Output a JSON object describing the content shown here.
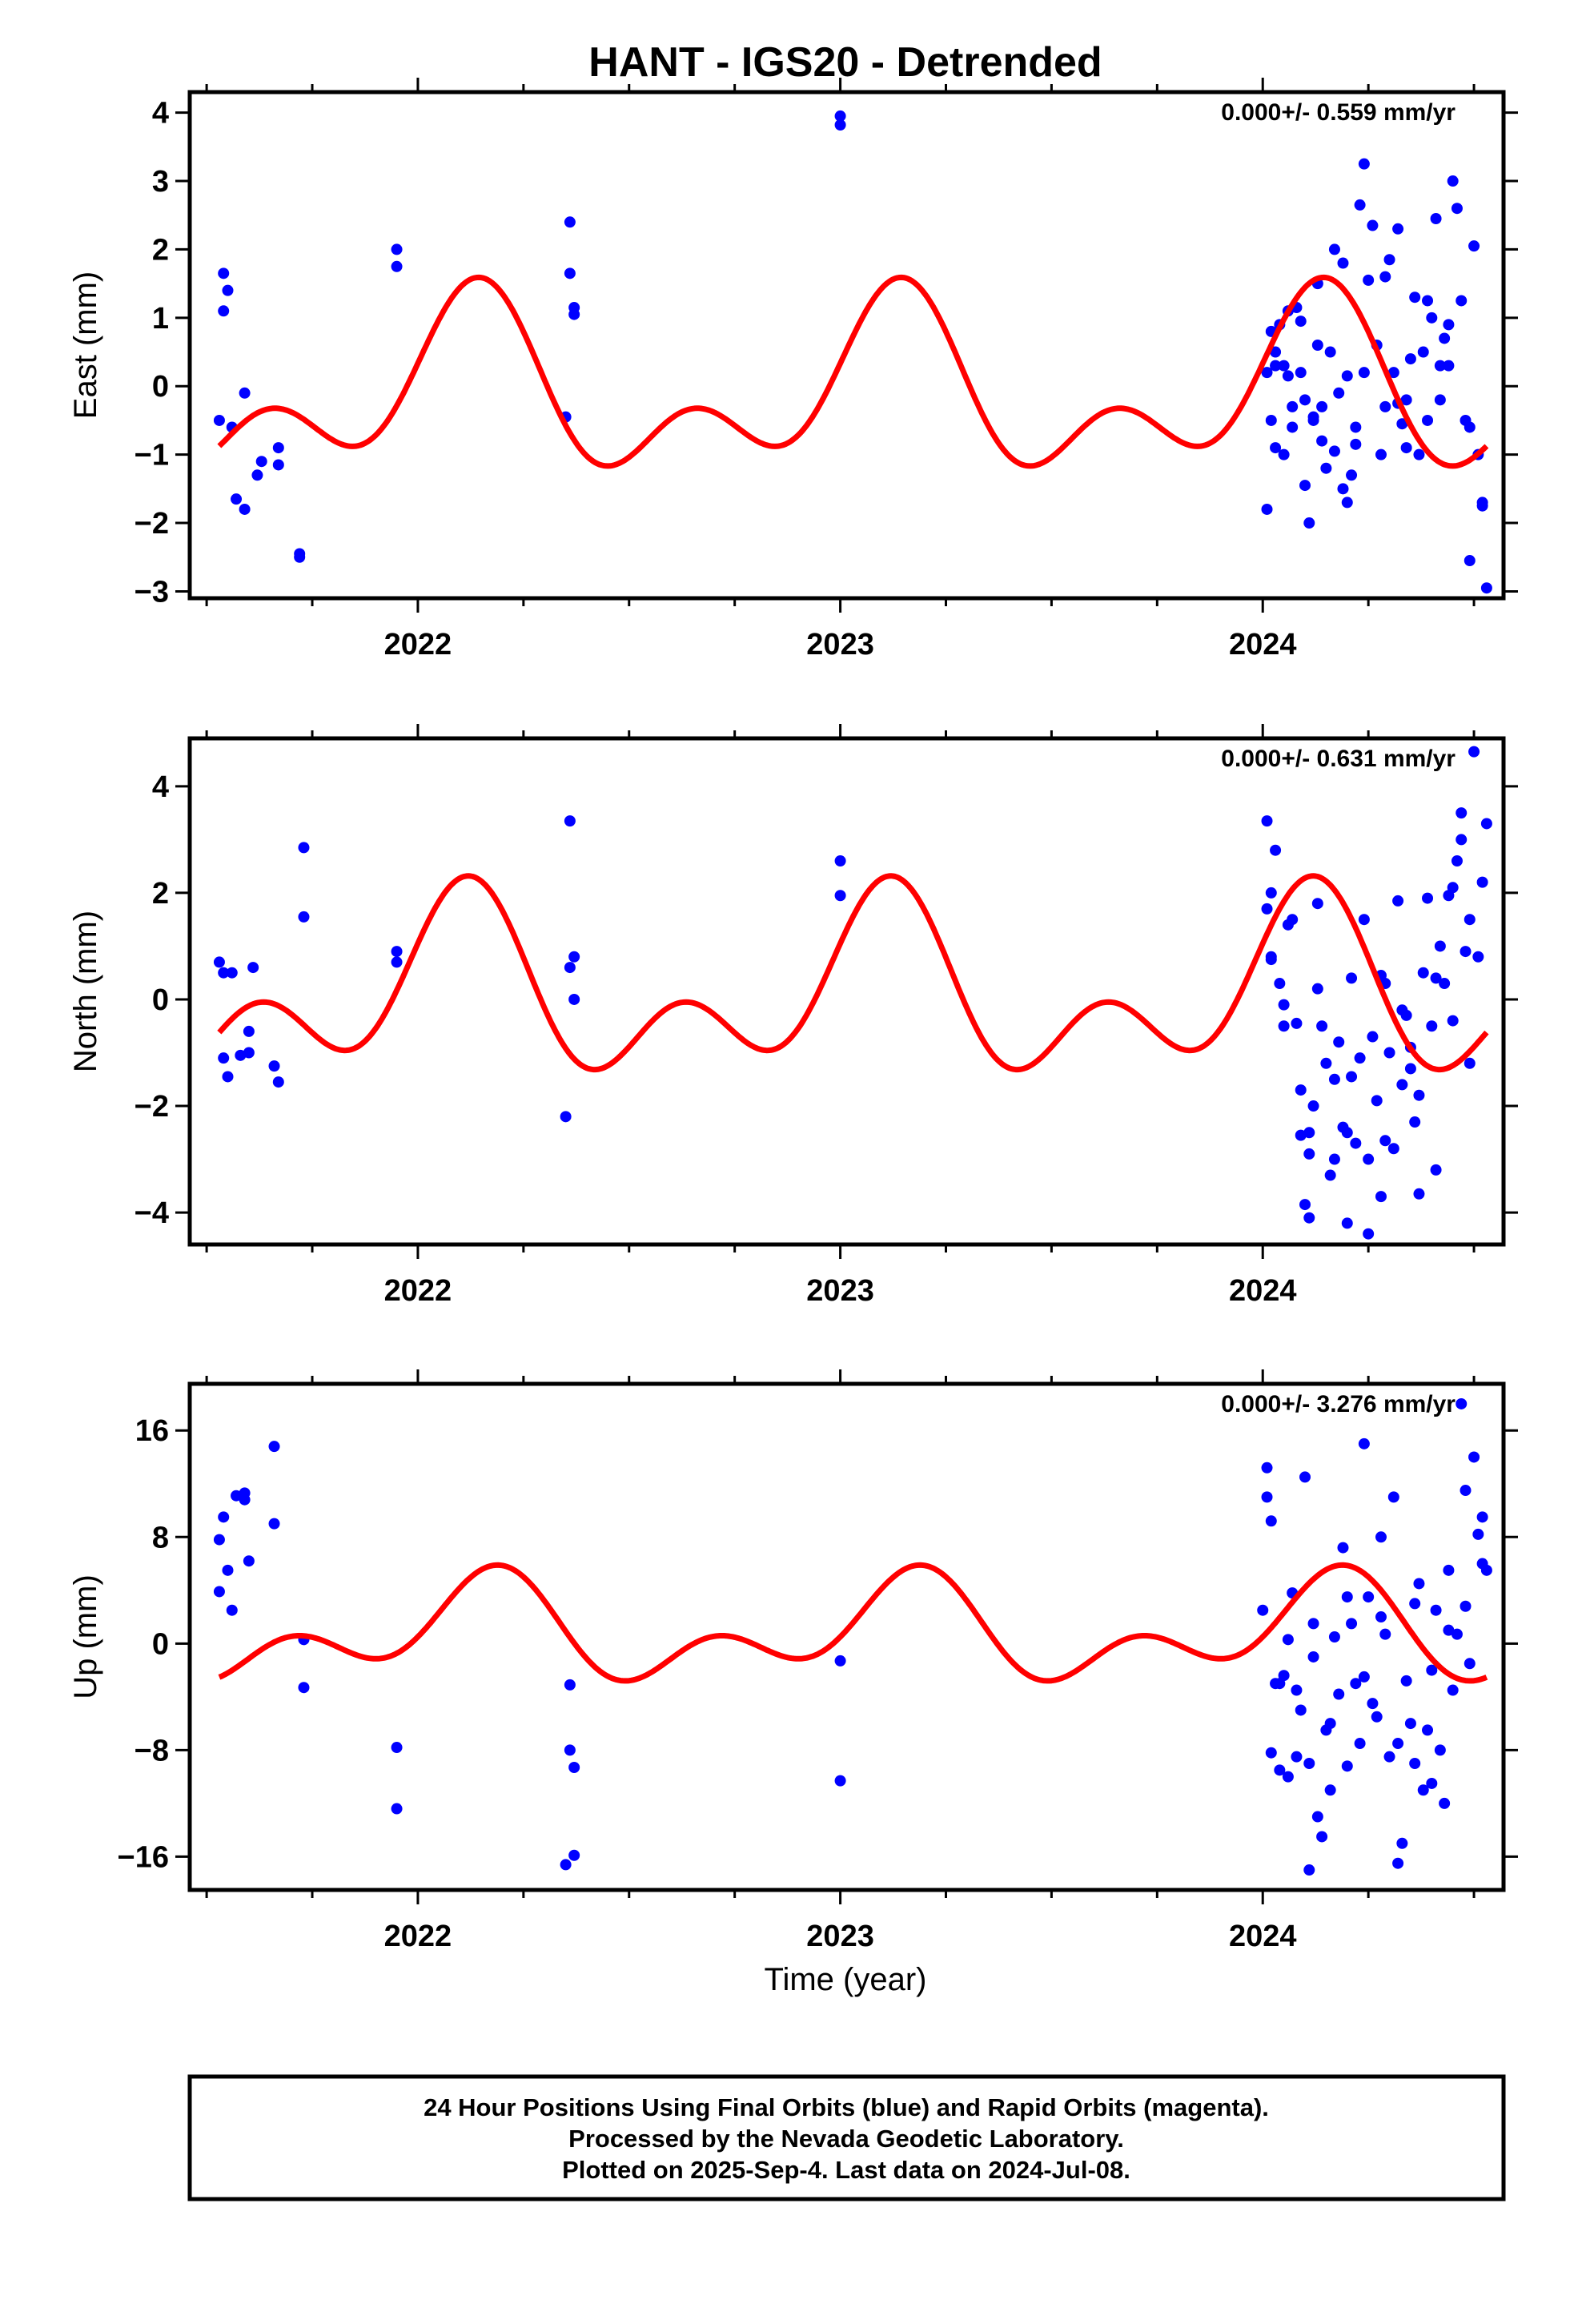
{
  "title": "HANT - IGS20 - Detrended",
  "xlabel": "Time (year)",
  "footer": {
    "line1": "24 Hour Positions Using Final Orbits (blue) and Rapid Orbits (magenta).",
    "line2": "Processed by the Nevada Geodetic Laboratory.",
    "line3": "Plotted on 2025-Sep-4. Last data on 2024-Jul-08."
  },
  "colors": {
    "points": "#0000ff",
    "model": "#ff0000",
    "axis": "#000000"
  },
  "chart_data": [
    {
      "type": "scatter",
      "ylabel": "East (mm)",
      "rate_text": "0.000+/- 0.559 mm/yr",
      "xlim": [
        2021.46,
        2024.57
      ],
      "ylim": [
        -3.1,
        4.3
      ],
      "x_ticks": [
        2022,
        2023,
        2024
      ],
      "y_ticks": [
        4,
        3,
        2,
        1,
        0,
        -1,
        -2,
        -3
      ],
      "y_tick_labels": [
        "4",
        "3",
        "2",
        "1",
        "0",
        "−1",
        "−2",
        "−3"
      ],
      "model": {
        "type": "seasonal",
        "offset": -0.12,
        "a1": 0.97,
        "p1": 0.25,
        "a2": 0.75,
        "p2": -0.1,
        "x_range": [
          2021.53,
          2024.53
        ]
      },
      "series": [
        {
          "x": [
            2021.53,
            2021.54,
            2021.54,
            2021.55,
            2021.56,
            2021.57,
            2021.59,
            2021.59,
            2021.62,
            2021.63,
            2021.67,
            2021.67,
            2021.72,
            2021.72,
            2021.95,
            2021.95,
            2022.35,
            2022.36,
            2022.36,
            2022.37,
            2022.37,
            2023.0,
            2023.0,
            2024.01,
            2024.01,
            2024.02,
            2024.02,
            2024.03,
            2024.03,
            2024.04,
            2024.05,
            2024.05,
            2024.06,
            2024.07,
            2024.07,
            2024.08,
            2024.09,
            2024.1,
            2024.1,
            2024.11,
            2024.12,
            2024.13,
            2024.13,
            2024.14,
            2024.15,
            2024.16,
            2024.17,
            2024.17,
            2024.18,
            2024.19,
            2024.2,
            2024.2,
            2024.21,
            2024.22,
            2024.23,
            2024.24,
            2024.25,
            2024.26,
            2024.27,
            2024.28,
            2024.29,
            2024.3,
            2024.31,
            2024.32,
            2024.33,
            2024.34,
            2024.35,
            2024.36,
            2024.37,
            2024.38,
            2024.39,
            2024.4,
            2024.41,
            2024.42,
            2024.43,
            2024.44,
            2024.45,
            2024.46,
            2024.47,
            2024.48,
            2024.49,
            2024.5,
            2024.51,
            2024.52,
            2024.53,
            2024.06,
            2024.09,
            2024.14,
            2024.19,
            2024.24,
            2024.29,
            2024.34,
            2024.39,
            2024.44,
            2024.49,
            2024.03,
            2024.12,
            2024.22,
            2024.32,
            2024.42,
            2024.52
          ],
          "y": [
            -0.5,
            1.65,
            1.1,
            1.4,
            -0.6,
            -1.65,
            -0.1,
            -1.8,
            -1.3,
            -1.1,
            -0.9,
            -1.15,
            -2.45,
            -2.5,
            1.75,
            2.0,
            -0.45,
            1.65,
            2.4,
            1.15,
            1.05,
            3.95,
            3.82,
            -1.8,
            0.2,
            0.8,
            -0.5,
            0.5,
            -0.9,
            0.9,
            -1.0,
            0.3,
            1.1,
            -0.6,
            -0.3,
            1.15,
            0.2,
            -1.45,
            -0.2,
            -2.0,
            -0.5,
            0.6,
            1.5,
            -0.3,
            -1.2,
            0.5,
            2.0,
            -0.95,
            -0.1,
            1.8,
            -1.7,
            0.15,
            -1.3,
            -0.6,
            2.65,
            3.25,
            1.55,
            2.35,
            0.6,
            -1.0,
            -0.3,
            1.85,
            0.2,
            2.3,
            -0.55,
            -0.9,
            0.4,
            1.3,
            -1.0,
            0.5,
            -0.5,
            1.0,
            2.45,
            -0.2,
            0.7,
            0.3,
            3.0,
            2.6,
            1.25,
            -0.5,
            -0.6,
            2.05,
            -1.0,
            -1.7,
            -2.95,
            0.15,
            0.95,
            -0.8,
            -1.5,
            0.2,
            1.6,
            -0.2,
            1.25,
            0.9,
            -2.55,
            0.3,
            -0.45,
            -0.85,
            -0.25,
            0.3,
            -1.75
          ]
        }
      ]
    },
    {
      "type": "scatter",
      "ylabel": "North (mm)",
      "rate_text": "0.000+/- 0.631 mm/yr",
      "xlim": [
        2021.46,
        2024.57
      ],
      "ylim": [
        -4.6,
        4.9
      ],
      "x_ticks": [
        2022,
        2023,
        2024
      ],
      "y_ticks": [
        4,
        2,
        0,
        -2,
        -4
      ],
      "y_tick_labels": [
        "4",
        "2",
        "0",
        "−2",
        "−4"
      ],
      "model": {
        "type": "seasonal",
        "offset": 0.08,
        "a1": 1.2,
        "p1": 0.3,
        "a2": 1.05,
        "p2": 0.0,
        "x_range": [
          2021.53,
          2024.53
        ]
      },
      "series": [
        {
          "x": [
            2021.53,
            2021.54,
            2021.54,
            2021.55,
            2021.56,
            2021.58,
            2021.6,
            2021.6,
            2021.61,
            2021.66,
            2021.67,
            2021.73,
            2021.73,
            2021.95,
            2021.95,
            2022.35,
            2022.36,
            2022.36,
            2022.37,
            2022.37,
            2023.0,
            2023.0,
            2024.01,
            2024.01,
            2024.02,
            2024.02,
            2024.03,
            2024.04,
            2024.05,
            2024.06,
            2024.07,
            2024.08,
            2024.09,
            2024.1,
            2024.11,
            2024.11,
            2024.12,
            2024.13,
            2024.14,
            2024.15,
            2024.16,
            2024.17,
            2024.18,
            2024.19,
            2024.2,
            2024.21,
            2024.22,
            2024.23,
            2024.24,
            2024.25,
            2024.26,
            2024.27,
            2024.28,
            2024.29,
            2024.3,
            2024.31,
            2024.32,
            2024.33,
            2024.34,
            2024.35,
            2024.36,
            2024.37,
            2024.38,
            2024.39,
            2024.4,
            2024.41,
            2024.42,
            2024.43,
            2024.44,
            2024.45,
            2024.46,
            2024.47,
            2024.48,
            2024.49,
            2024.5,
            2024.51,
            2024.52,
            2024.53,
            2024.05,
            2024.09,
            2024.13,
            2024.17,
            2024.21,
            2024.25,
            2024.29,
            2024.33,
            2024.37,
            2024.41,
            2024.45,
            2024.49,
            2024.02,
            2024.11,
            2024.2,
            2024.28,
            2024.35,
            2024.47
          ],
          "y": [
            0.7,
            0.5,
            -1.1,
            -1.45,
            0.5,
            -1.05,
            -1.0,
            -0.6,
            0.6,
            -1.25,
            -1.55,
            2.85,
            1.55,
            0.9,
            0.7,
            -2.2,
            0.6,
            3.35,
            0.8,
            0.0,
            2.6,
            1.95,
            3.35,
            1.7,
            2.0,
            0.8,
            2.8,
            0.3,
            -0.1,
            1.4,
            1.5,
            -0.45,
            -1.7,
            -3.85,
            -2.5,
            -4.1,
            -2.0,
            1.8,
            -0.5,
            -1.2,
            -3.3,
            -1.5,
            -0.8,
            -2.4,
            -4.2,
            0.4,
            -2.7,
            -1.1,
            1.5,
            -3.0,
            -0.7,
            -1.9,
            -3.7,
            0.3,
            -1.0,
            -2.8,
            1.85,
            -1.6,
            -0.3,
            -1.3,
            -2.3,
            -3.65,
            0.5,
            1.9,
            -0.5,
            -3.2,
            1.0,
            0.3,
            1.95,
            -0.4,
            2.6,
            3.5,
            0.9,
            1.5,
            4.65,
            0.8,
            2.2,
            3.3,
            -0.5,
            -2.55,
            0.2,
            -3.0,
            -1.45,
            -4.4,
            -2.65,
            -0.2,
            -1.8,
            0.4,
            2.1,
            -1.2,
            0.75,
            -2.9,
            -2.5,
            0.45,
            -0.9,
            3.0
          ]
        }
      ]
    },
    {
      "type": "scatter",
      "ylabel": "Up (mm)",
      "rate_text": "0.000+/- 3.276 mm/yr",
      "xlim": [
        2021.46,
        2024.57
      ],
      "ylim": [
        -18.5,
        19.5
      ],
      "x_ticks": [
        2022,
        2023,
        2024
      ],
      "y_ticks": [
        16,
        8,
        0,
        -8,
        -16
      ],
      "y_tick_labels": [
        "16",
        "8",
        "0",
        "−8",
        "−16"
      ],
      "model": {
        "type": "seasonal",
        "offset": 0.8,
        "a1": 2.8,
        "p1": 0.2,
        "a2": 2.4,
        "p2": -0.3,
        "x_range": [
          2021.53,
          2024.53
        ]
      },
      "series": [
        {
          "x": [
            2021.53,
            2021.53,
            2021.54,
            2021.55,
            2021.56,
            2021.57,
            2021.59,
            2021.59,
            2021.6,
            2021.66,
            2021.66,
            2021.73,
            2021.73,
            2021.95,
            2021.95,
            2022.35,
            2022.36,
            2022.36,
            2022.37,
            2022.37,
            2023.0,
            2023.0,
            2024.0,
            2024.01,
            2024.01,
            2024.02,
            2024.02,
            2024.03,
            2024.04,
            2024.05,
            2024.06,
            2024.06,
            2024.07,
            2024.08,
            2024.09,
            2024.1,
            2024.11,
            2024.11,
            2024.12,
            2024.13,
            2024.14,
            2024.15,
            2024.16,
            2024.17,
            2024.18,
            2024.19,
            2024.2,
            2024.21,
            2024.22,
            2024.23,
            2024.24,
            2024.25,
            2024.26,
            2024.27,
            2024.28,
            2024.29,
            2024.3,
            2024.31,
            2024.32,
            2024.33,
            2024.34,
            2024.35,
            2024.36,
            2024.37,
            2024.38,
            2024.39,
            2024.4,
            2024.41,
            2024.42,
            2024.43,
            2024.44,
            2024.45,
            2024.46,
            2024.47,
            2024.48,
            2024.49,
            2024.5,
            2024.51,
            2024.52,
            2024.53,
            2024.04,
            2024.08,
            2024.12,
            2024.16,
            2024.2,
            2024.24,
            2024.28,
            2024.32,
            2024.36,
            2024.4,
            2024.44,
            2024.48,
            2024.52
          ],
          "y": [
            3.9,
            7.8,
            9.5,
            5.5,
            2.5,
            11.1,
            11.3,
            10.8,
            6.2,
            14.8,
            9.0,
            0.3,
            -3.3,
            -7.8,
            -12.4,
            -16.6,
            -3.1,
            -8.0,
            -15.9,
            -9.3,
            -1.3,
            -10.3,
            2.5,
            13.2,
            11.0,
            9.2,
            -8.2,
            -3.0,
            -9.5,
            -2.4,
            0.3,
            -10.0,
            3.8,
            -3.5,
            -5.0,
            12.5,
            -9.0,
            -17.0,
            1.5,
            -13.0,
            -14.5,
            -6.5,
            -11.0,
            0.5,
            -3.8,
            7.2,
            -9.2,
            1.5,
            -3.0,
            -7.5,
            15.0,
            3.5,
            -4.5,
            -5.5,
            8.0,
            0.7,
            -8.5,
            11.0,
            -16.5,
            -15.0,
            -2.8,
            -6.0,
            -9.0,
            4.5,
            -11.0,
            -6.5,
            -2.0,
            2.5,
            -8.0,
            -12.0,
            5.5,
            -3.5,
            0.7,
            18.0,
            11.5,
            -1.5,
            14.0,
            8.2,
            9.5,
            5.5,
            -3.0,
            -8.5,
            -1.0,
            -6.0,
            3.5,
            -2.5,
            2.0,
            -7.5,
            3.0,
            -10.5,
            1.0,
            2.8,
            6.0
          ]
        }
      ]
    }
  ]
}
